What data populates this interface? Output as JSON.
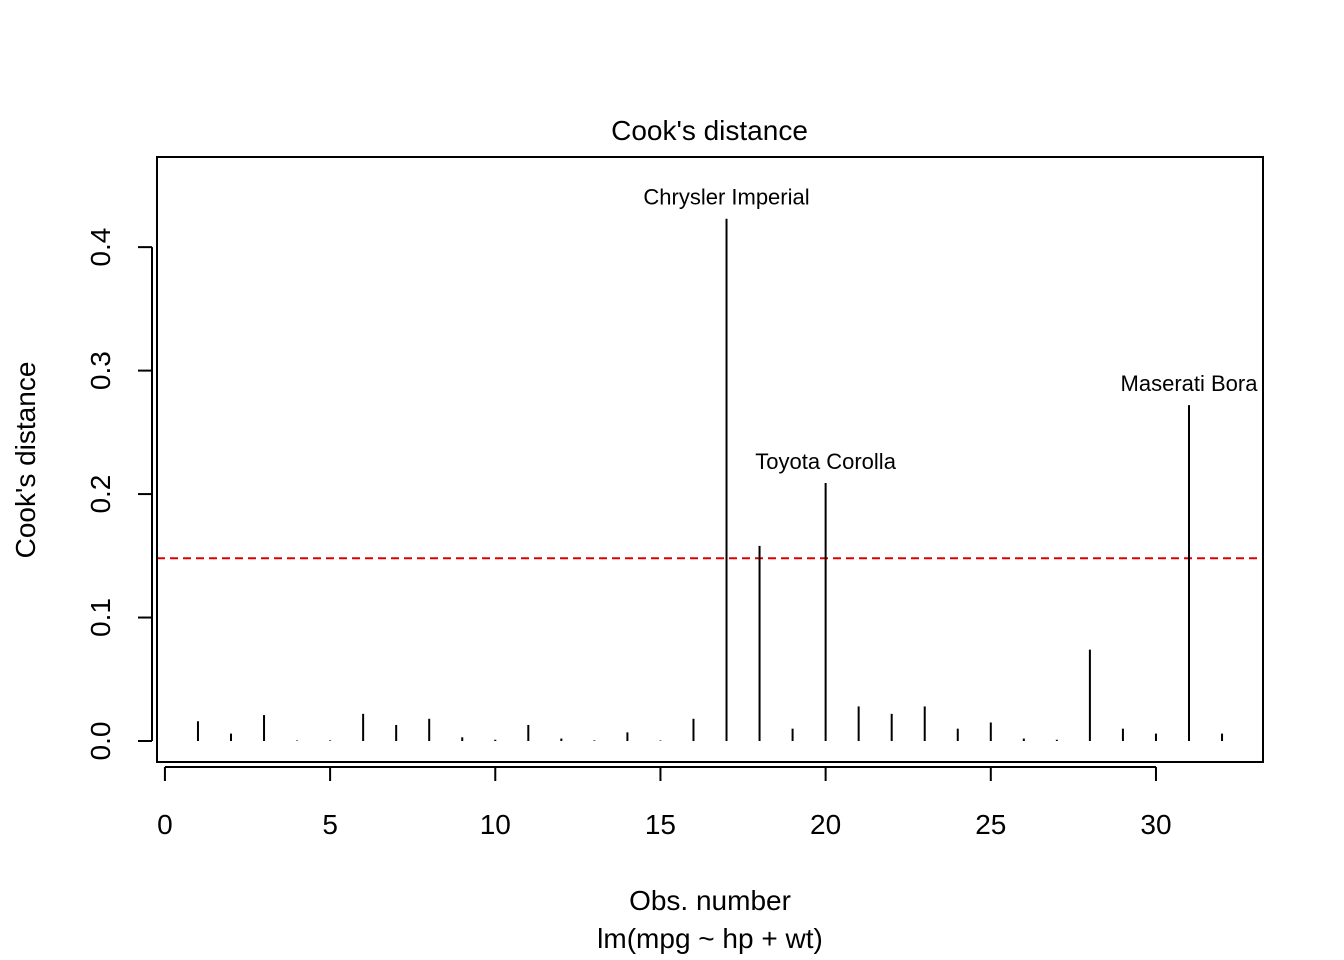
{
  "chart_data": {
    "type": "bar",
    "title": "Cook's distance",
    "xlabel": "Obs. number",
    "sublabel": "lm(mpg ~ hp + wt)",
    "ylabel": "Cook's distance",
    "xlim": [
      -0.24,
      33.24
    ],
    "ylim": [
      -0.017,
      0.473
    ],
    "xticks": [
      0,
      5,
      10,
      15,
      20,
      25,
      30
    ],
    "yticks": [
      0.0,
      0.1,
      0.2,
      0.3,
      0.4
    ],
    "ytick_labels": [
      "0.0",
      "0.1",
      "0.2",
      "0.3",
      "0.4"
    ],
    "threshold": 0.148,
    "threshold_color": "#dd0000",
    "x": [
      1,
      2,
      3,
      4,
      5,
      6,
      7,
      8,
      9,
      10,
      11,
      12,
      13,
      14,
      15,
      16,
      17,
      18,
      19,
      20,
      21,
      22,
      23,
      24,
      25,
      26,
      27,
      28,
      29,
      30,
      31,
      32
    ],
    "values": [
      0.016,
      0.006,
      0.021,
      0.0004,
      0.0005,
      0.022,
      0.013,
      0.018,
      0.003,
      0.001,
      0.013,
      0.002,
      0.0005,
      0.007,
      0.0004,
      0.018,
      0.423,
      0.158,
      0.01,
      0.209,
      0.028,
      0.022,
      0.028,
      0.01,
      0.015,
      0.002,
      0.001,
      0.074,
      0.01,
      0.006,
      0.272,
      0.006
    ],
    "annotations": [
      {
        "x": 17,
        "label": "Chrysler Imperial"
      },
      {
        "x": 20,
        "label": "Toyota Corolla"
      },
      {
        "x": 31,
        "label": "Maserati Bora"
      }
    ],
    "grid": false
  }
}
